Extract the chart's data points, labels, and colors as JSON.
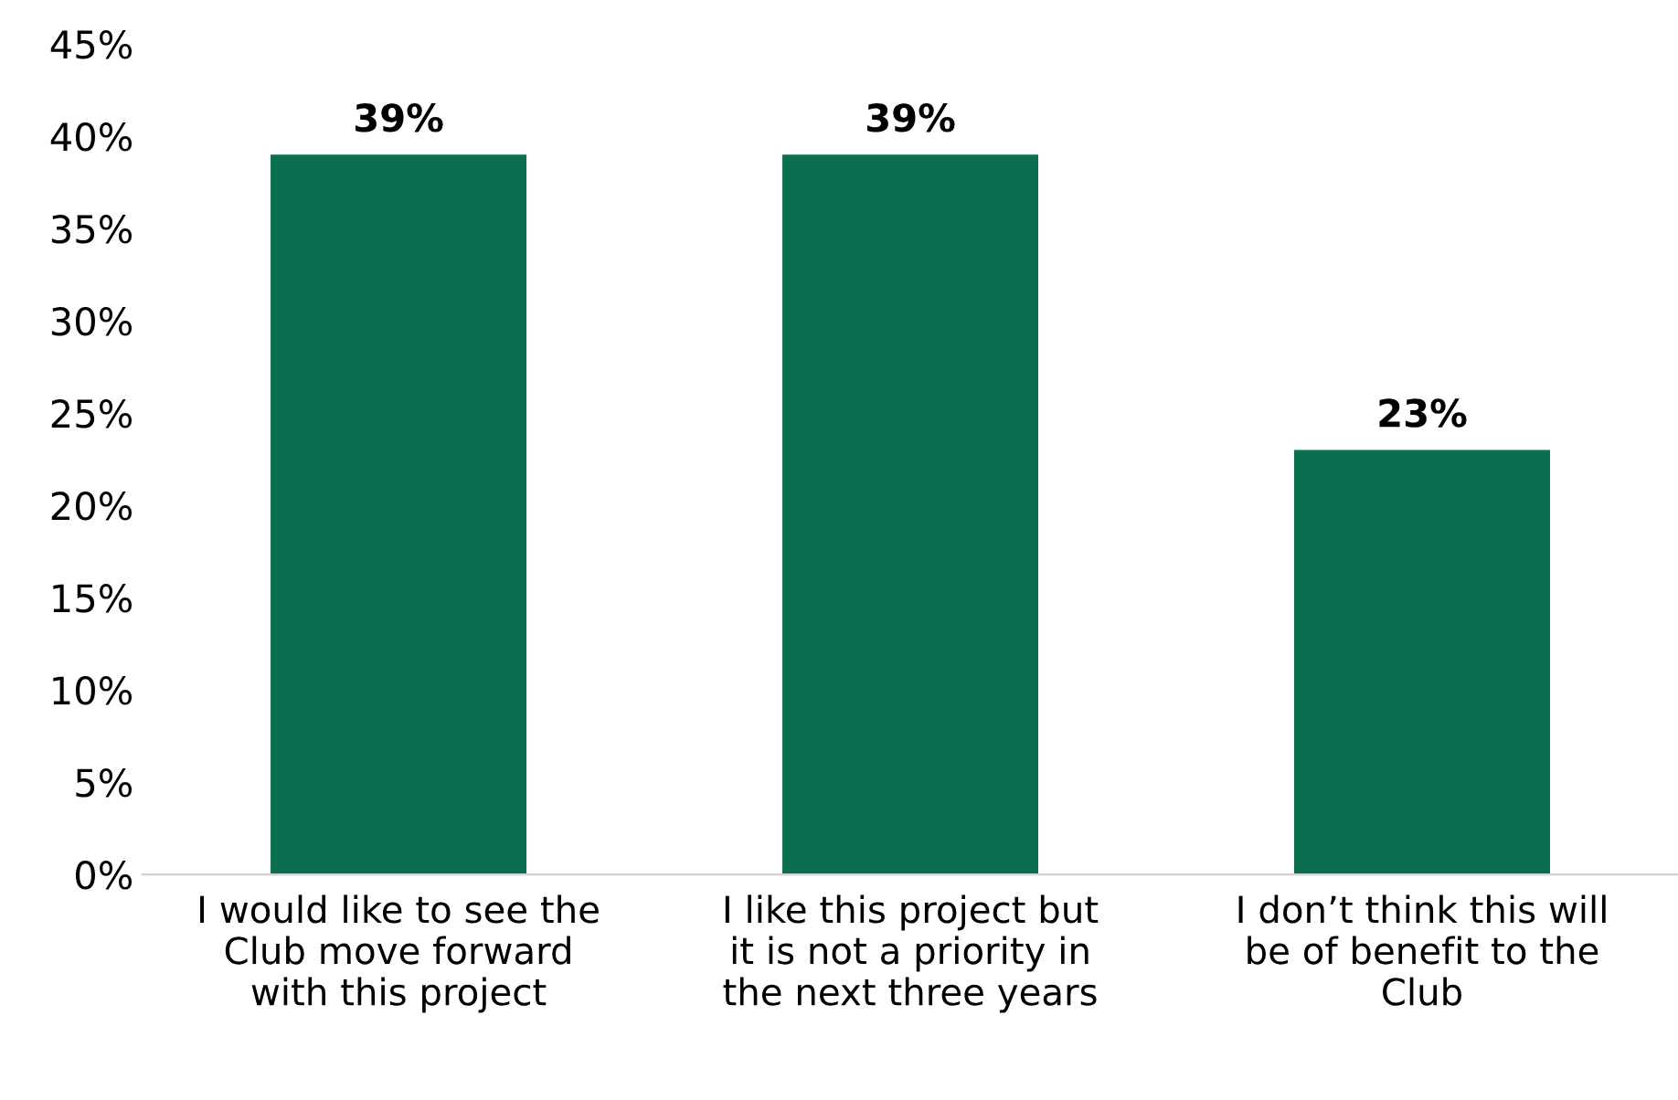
{
  "chart_data": {
    "type": "bar",
    "categories": [
      "I would like to see the\nClub move forward\nwith this project",
      "I like this project but\nit is not a priority in\nthe next three years",
      "I don’t think this will\nbe of benefit to the\nClub"
    ],
    "values": [
      39,
      39,
      23
    ],
    "value_labels": [
      "39%",
      "39%",
      "23%"
    ],
    "color": "#0b6e50",
    "ylim": [
      0,
      45
    ],
    "yticks": [
      {
        "value": 0,
        "label": "0%"
      },
      {
        "value": 5,
        "label": "5%"
      },
      {
        "value": 10,
        "label": "10%"
      },
      {
        "value": 15,
        "label": "15%"
      },
      {
        "value": 20,
        "label": "20%"
      },
      {
        "value": 25,
        "label": "25%"
      },
      {
        "value": 30,
        "label": "30%"
      },
      {
        "value": 35,
        "label": "35%"
      },
      {
        "value": 40,
        "label": "40%"
      },
      {
        "value": 45,
        "label": "45%"
      }
    ],
    "grid": false,
    "legend": false
  }
}
